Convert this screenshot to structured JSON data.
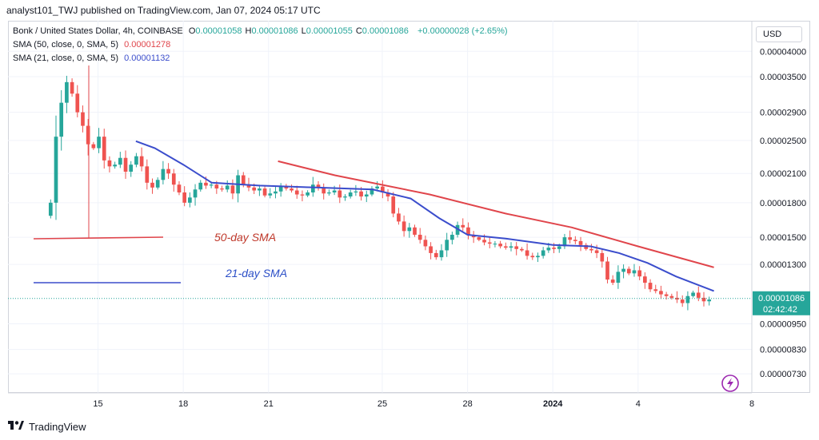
{
  "header": {
    "publisher_line": "analyst101_TWJ published on TradingView.com, Jan 07, 2024 05:17 UTC"
  },
  "legend": {
    "symbol": "Bonk / United States Dollar, 4h, COINBASE",
    "ohlc": [
      {
        "key": "O",
        "value": "0.00001058"
      },
      {
        "key": "H",
        "value": "0.00001086"
      },
      {
        "key": "L",
        "value": "0.00001055"
      },
      {
        "key": "C",
        "value": "0.00001086"
      }
    ],
    "change": "+0.00000028 (+2.65%)",
    "sma50_label": "SMA (50, close, 0, SMA, 5)",
    "sma50_value": "0.00001278",
    "sma21_label": "SMA (21, close, 0, SMA, 5)",
    "sma21_value": "0.00001132"
  },
  "currency_button": "USD",
  "annotations": {
    "sma50": "50-day SMA",
    "sma21": "21-day SMA"
  },
  "price_tag": {
    "price": "0.00001086",
    "countdown": "02:42:42"
  },
  "colors": {
    "up": "#26a69a",
    "down": "#ef5350",
    "sma50": "#e0454b",
    "sma21": "#3b4dcc",
    "annotation50": "#c0392b",
    "annotation21": "#2c4fc7"
  },
  "footer": {
    "brand": "TradingView"
  },
  "chart_data": {
    "type": "candlestick",
    "yscale": "log",
    "y_ticks": [
      "0.00004000",
      "0.00003500",
      "0.00002900",
      "0.00002500",
      "0.00002100",
      "0.00001800",
      "0.00001500",
      "0.00001300",
      "0.00000950",
      "0.00000830",
      "0.00000730"
    ],
    "ylim": [
      6.6e-06,
      4.7e-05
    ],
    "x_ticks": [
      {
        "label": "15",
        "t": 10
      },
      {
        "label": "18",
        "t": 28
      },
      {
        "label": "21",
        "t": 46
      },
      {
        "label": "25",
        "t": 70
      },
      {
        "label": "28",
        "t": 88
      },
      {
        "label": "2024",
        "t": 106
      },
      {
        "label": "4",
        "t": 124
      },
      {
        "label": "8",
        "t": 148
      }
    ],
    "xlim": [
      -9,
      148
    ],
    "sma50": [
      {
        "t": 48,
        "v": 2.24e-05
      },
      {
        "t": 60,
        "v": 2.08e-05
      },
      {
        "t": 80,
        "v": 1.88e-05
      },
      {
        "t": 96,
        "v": 1.7e-05
      },
      {
        "t": 110,
        "v": 1.58e-05
      },
      {
        "t": 124,
        "v": 1.43e-05
      },
      {
        "t": 140,
        "v": 1.28e-05
      }
    ],
    "sma21": [
      {
        "t": 18,
        "v": 2.49e-05
      },
      {
        "t": 22,
        "v": 2.4e-05
      },
      {
        "t": 28,
        "v": 2.2e-05
      },
      {
        "t": 34,
        "v": 2e-05
      },
      {
        "t": 44,
        "v": 1.97e-05
      },
      {
        "t": 56,
        "v": 1.95e-05
      },
      {
        "t": 68,
        "v": 1.93e-05
      },
      {
        "t": 76,
        "v": 1.84e-05
      },
      {
        "t": 82,
        "v": 1.66e-05
      },
      {
        "t": 88,
        "v": 1.52e-05
      },
      {
        "t": 96,
        "v": 1.49e-05
      },
      {
        "t": 106,
        "v": 1.44e-05
      },
      {
        "t": 114,
        "v": 1.43e-05
      },
      {
        "t": 120,
        "v": 1.38e-05
      },
      {
        "t": 126,
        "v": 1.31e-05
      },
      {
        "t": 132,
        "v": 1.22e-05
      },
      {
        "t": 140,
        "v": 1.13e-05
      }
    ],
    "candles_close": [
      1.8e-05,
      2.55e-05,
      3.05e-05,
      3.4e-05,
      3.2e-05,
      2.9e-05,
      2.7e-05,
      2.45e-05,
      2.4e-05,
      2.55e-05,
      2.25e-05,
      2.18e-05,
      2.2e-05,
      2.28e-05,
      2.12e-05,
      2.2e-05,
      2.3e-05,
      2.18e-05,
      2e-05,
      1.95e-05,
      2.03e-05,
      2.15e-05,
      2.1e-05,
      1.98e-05,
      1.9e-05,
      1.8e-05,
      1.85e-05,
      1.93e-05,
      2e-05,
      1.97e-05,
      1.98e-05,
      1.94e-05,
      1.93e-05,
      1.97e-05,
      1.89e-05,
      2.08e-05,
      1.98e-05,
      1.95e-05,
      1.92e-05,
      1.94e-05,
      1.87e-05,
      1.89e-05,
      1.91e-05,
      1.96e-05,
      1.94e-05,
      1.92e-05,
      1.88e-05,
      1.87e-05,
      1.9e-05,
      1.98e-05,
      1.95e-05,
      1.89e-05,
      1.9e-05,
      1.92e-05,
      1.85e-05,
      1.86e-05,
      1.9e-05,
      1.91e-05,
      1.86e-05,
      1.88e-05,
      1.94e-05,
      1.96e-05,
      1.9e-05,
      1.86e-05,
      1.7e-05,
      1.63e-05,
      1.55e-05,
      1.58e-05,
      1.52e-05,
      1.48e-05,
      1.43e-05,
      1.38e-05,
      1.35e-05,
      1.4e-05,
      1.48e-05,
      1.52e-05,
      1.6e-05,
      1.58e-05,
      1.52e-05,
      1.5e-05,
      1.48e-05,
      1.46e-05,
      1.45e-05,
      1.45e-05,
      1.43e-05,
      1.42e-05,
      1.43e-05,
      1.41e-05,
      1.4e-05,
      1.36e-05,
      1.35e-05,
      1.36e-05,
      1.4e-05,
      1.42e-05,
      1.41e-05,
      1.43e-05,
      1.5e-05,
      1.48e-05,
      1.47e-05,
      1.44e-05,
      1.41e-05,
      1.4e-05,
      1.38e-05,
      1.32e-05,
      1.2e-05,
      1.18e-05,
      1.25e-05,
      1.27e-05,
      1.24e-05,
      1.26e-05,
      1.22e-05,
      1.18e-05,
      1.14e-05,
      1.13e-05,
      1.11e-05,
      1.1e-05,
      1.09e-05,
      1.08e-05,
      1.06e-05,
      1.1e-05,
      1.12e-05,
      1.09e-05,
      1.07e-05,
      1.08e-05
    ]
  }
}
